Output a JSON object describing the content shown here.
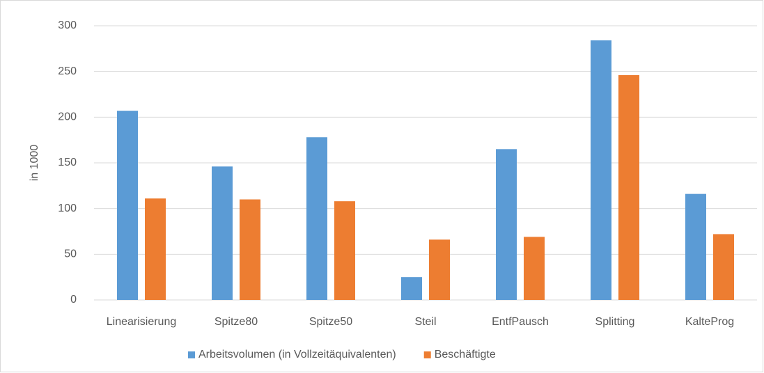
{
  "chart_data": {
    "type": "bar",
    "y_label": "in 1000",
    "categories": [
      "Linearisierung",
      "Spitze80",
      "Spitze50",
      "Steil",
      "EntfPausch",
      "Splitting",
      "KalteProg"
    ],
    "series": [
      {
        "name": "Arbeitsvolumen (in Vollzeitäquivalenten)",
        "color": "#5b9bd5",
        "values": [
          207,
          146,
          178,
          25,
          165,
          284,
          116
        ]
      },
      {
        "name": "Beschäftigte",
        "color": "#ed7d31",
        "values": [
          111,
          110,
          108,
          66,
          69,
          246,
          72
        ]
      }
    ],
    "ylim": [
      0,
      300
    ],
    "yticks": [
      0,
      50,
      100,
      150,
      200,
      250,
      300
    ],
    "grid": true,
    "legend": "bottom"
  }
}
